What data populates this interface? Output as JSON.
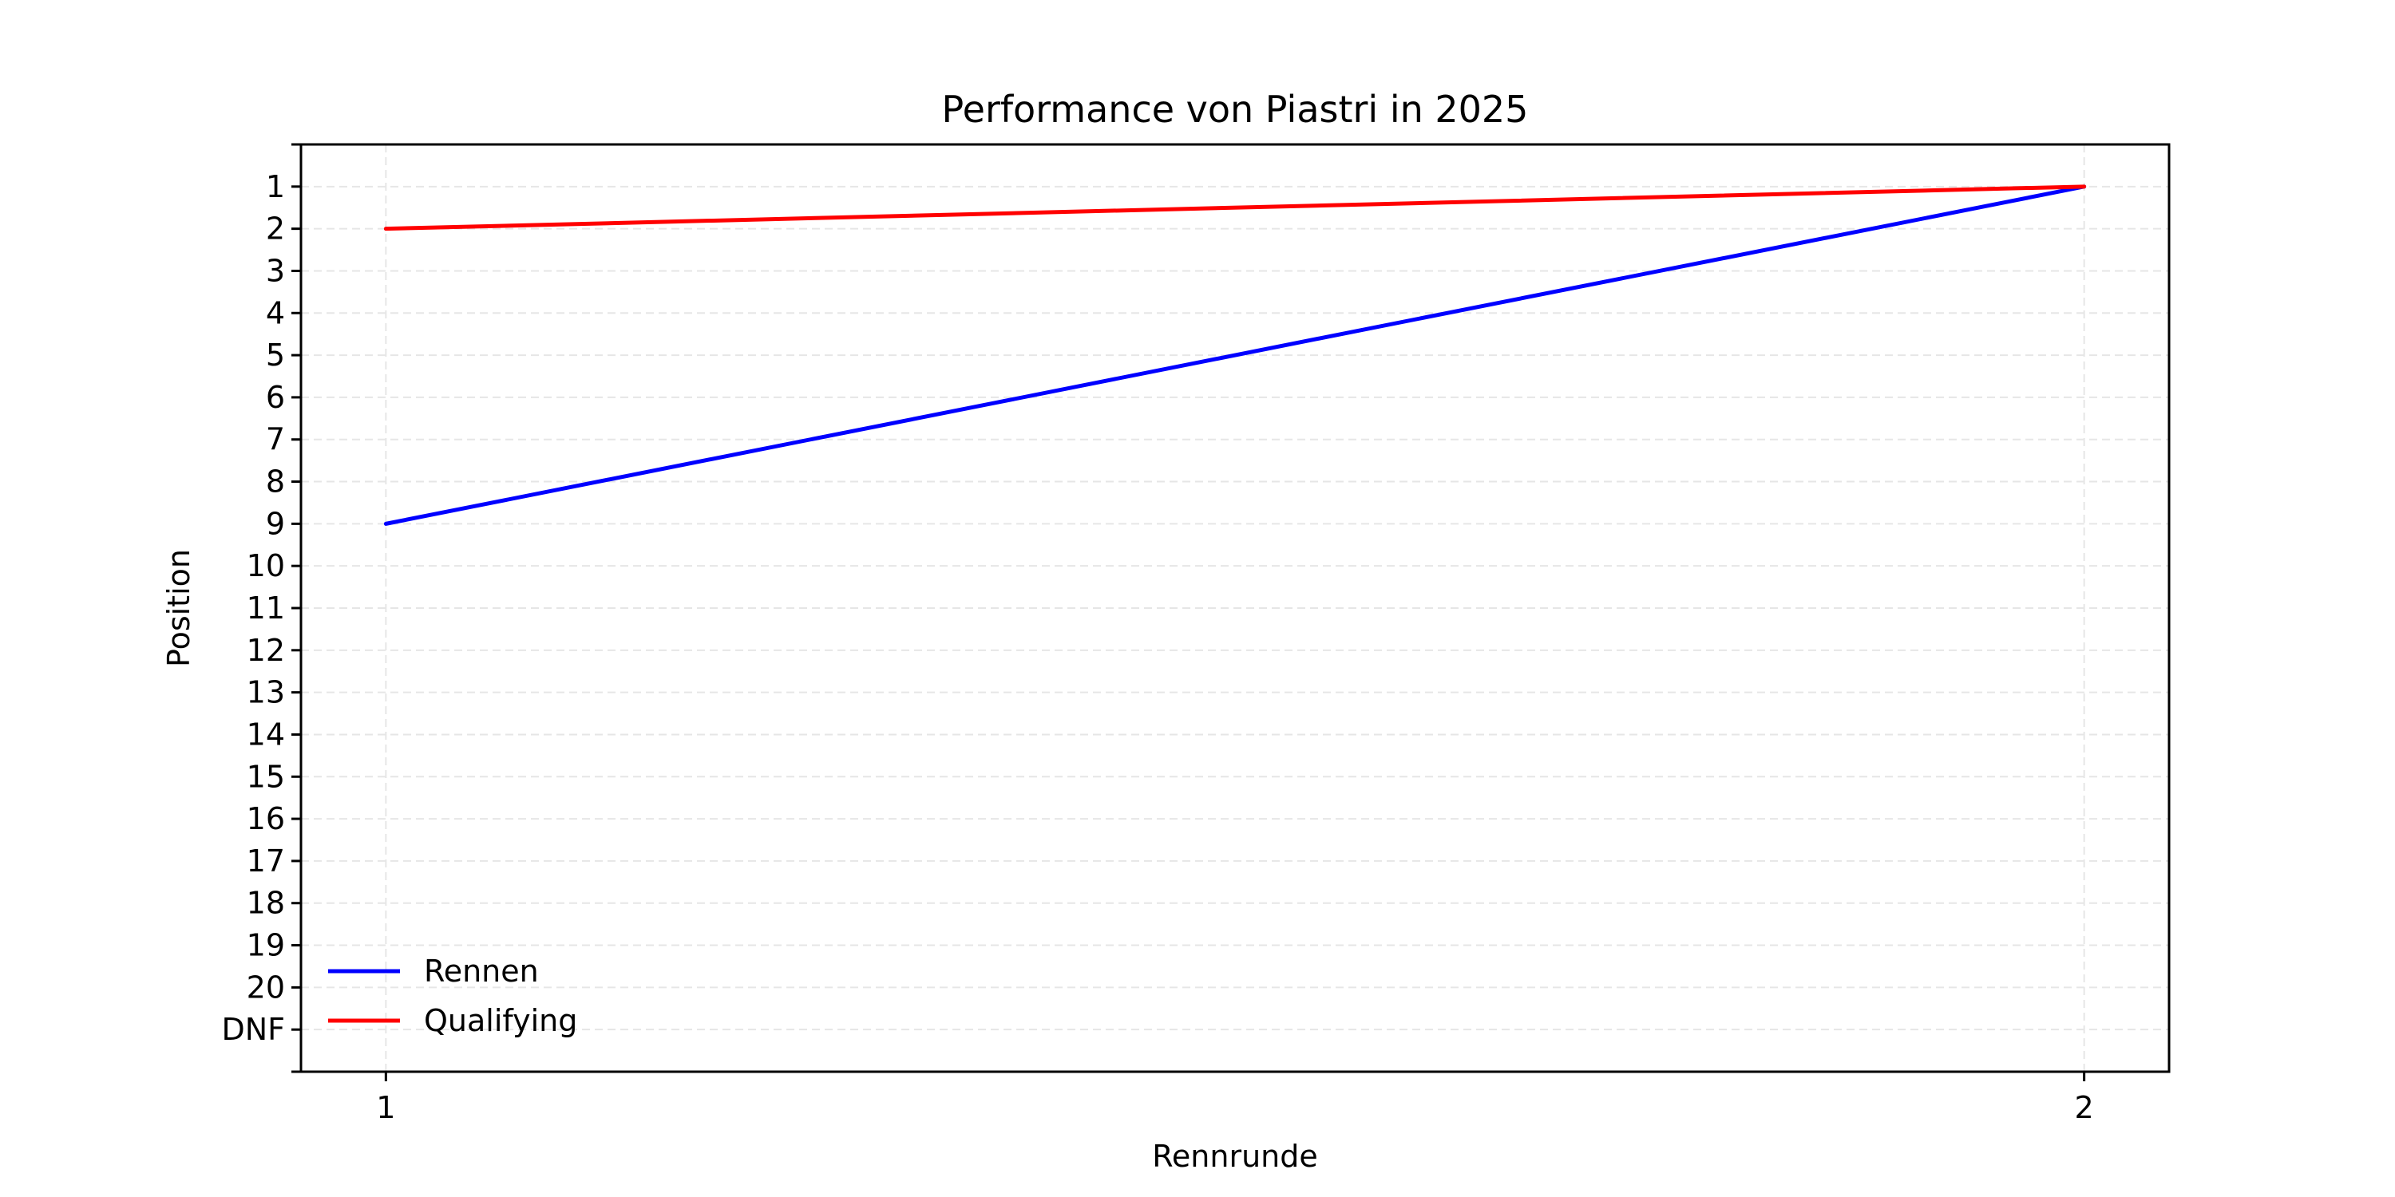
{
  "chart_data": {
    "type": "line",
    "title": "Performance von Piastri in 2025",
    "xlabel": "Rennrunde",
    "ylabel": "Position",
    "x": [
      1,
      2
    ],
    "x_ticks": [
      "1",
      "2"
    ],
    "xlim": [
      0.95,
      2.05
    ],
    "ylim": [
      22,
      0
    ],
    "y_inverted": true,
    "y_ticks": [
      {
        "value": 1,
        "label": "1"
      },
      {
        "value": 2,
        "label": "2"
      },
      {
        "value": 3,
        "label": "3"
      },
      {
        "value": 4,
        "label": "4"
      },
      {
        "value": 5,
        "label": "5"
      },
      {
        "value": 6,
        "label": "6"
      },
      {
        "value": 7,
        "label": "7"
      },
      {
        "value": 8,
        "label": "8"
      },
      {
        "value": 9,
        "label": "9"
      },
      {
        "value": 10,
        "label": "10"
      },
      {
        "value": 11,
        "label": "11"
      },
      {
        "value": 12,
        "label": "12"
      },
      {
        "value": 13,
        "label": "13"
      },
      {
        "value": 14,
        "label": "14"
      },
      {
        "value": 15,
        "label": "15"
      },
      {
        "value": 16,
        "label": "16"
      },
      {
        "value": 17,
        "label": "17"
      },
      {
        "value": 18,
        "label": "18"
      },
      {
        "value": 19,
        "label": "19"
      },
      {
        "value": 20,
        "label": "20"
      },
      {
        "value": 21,
        "label": "DNF"
      }
    ],
    "grid": true,
    "legend_position": "bottom-left",
    "series": [
      {
        "name": "Rennen",
        "color": "#0000ff",
        "values": [
          9,
          1
        ]
      },
      {
        "name": "Qualifying",
        "color": "#ff0000",
        "values": [
          2,
          1
        ]
      }
    ]
  }
}
